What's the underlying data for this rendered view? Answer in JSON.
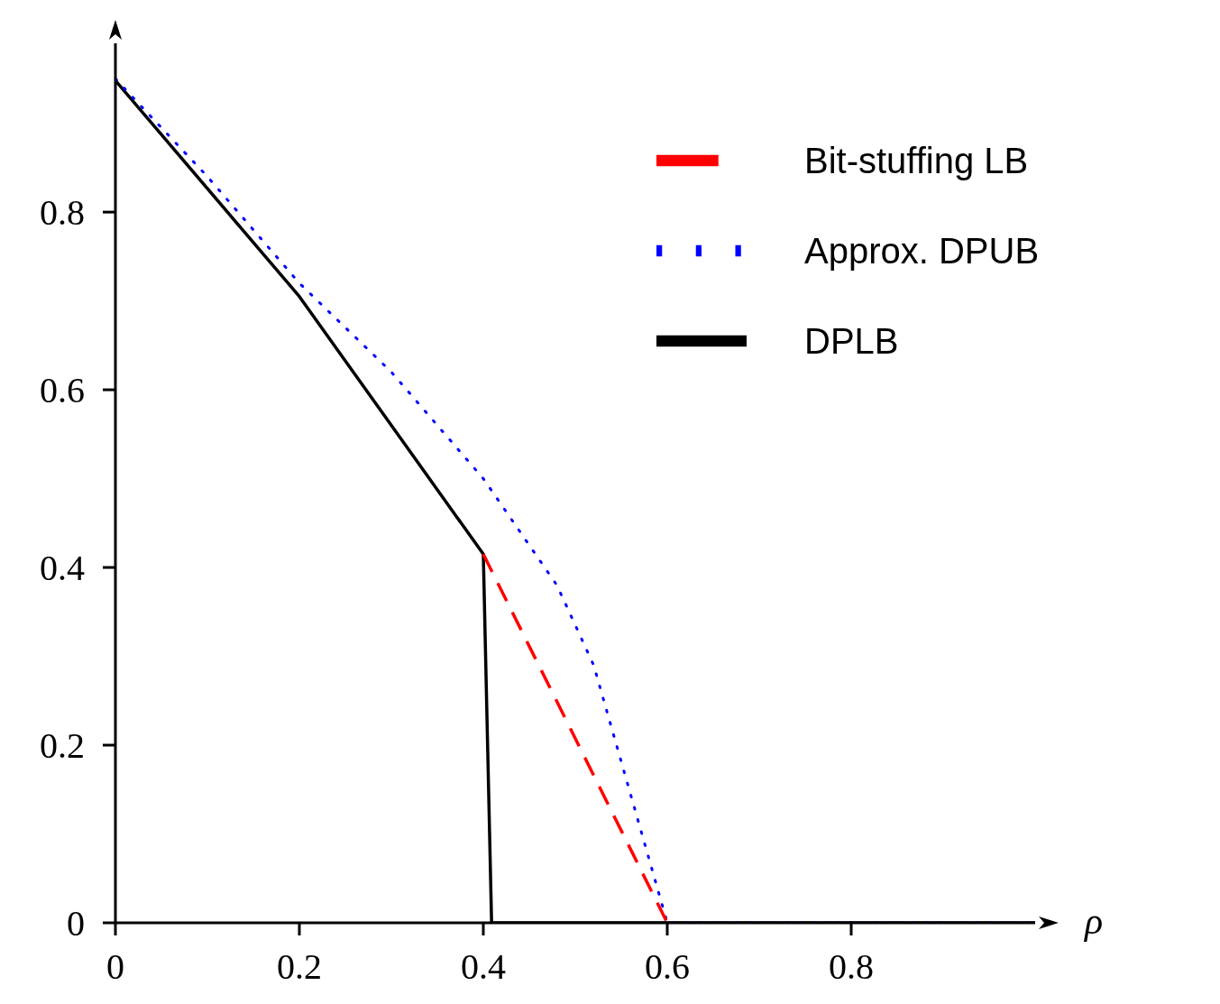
{
  "chart_data": {
    "type": "line",
    "xlabel": "ρ",
    "xlim": [
      0,
      1
    ],
    "xticks": [
      0,
      0.2,
      0.4,
      0.6,
      0.8
    ],
    "ylim": [
      0,
      0.99
    ],
    "yticks": [
      0,
      0.2,
      0.4,
      0.6,
      0.8
    ],
    "grid": false,
    "legend": "top right",
    "marker": "none",
    "series": [
      {
        "name": "Bit-stuffing LB",
        "color": "#ff0000",
        "line_style": "dashed",
        "x": [
          0.4,
          0.6
        ],
        "values": [
          0.415,
          0
        ]
      },
      {
        "name": "Approx. DPUB",
        "color": "#0000ff",
        "line_style": "dotted",
        "x": [
          0,
          0.1,
          0.2,
          0.3,
          0.4,
          0.48,
          0.52,
          0.6,
          1
        ],
        "values": [
          0.95,
          0.84,
          0.72,
          0.62,
          0.5,
          0.38,
          0.29,
          0,
          0
        ]
      },
      {
        "name": "DPLB",
        "color": "#000000",
        "line_style": "solid",
        "x": [
          0,
          0.2,
          0.4,
          0.409,
          1
        ],
        "values": [
          0.948,
          0.705,
          0.415,
          0,
          0
        ]
      }
    ]
  }
}
